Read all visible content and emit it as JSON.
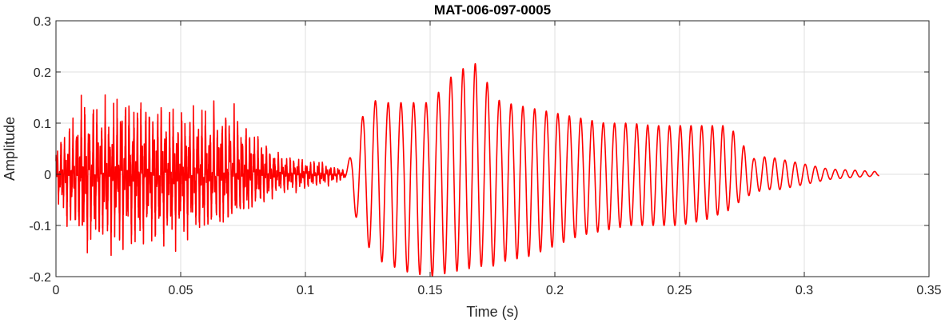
{
  "chart_data": {
    "type": "line",
    "title": "MAT-006-097-0005",
    "xlabel": "Time (s)",
    "ylabel": "Amplitude",
    "xlim": [
      0,
      0.35
    ],
    "ylim": [
      -0.2,
      0.3
    ],
    "grid": true,
    "xticks": [
      0,
      0.05,
      0.1,
      0.15,
      0.2,
      0.25,
      0.3,
      0.35
    ],
    "yticks": [
      -0.2,
      -0.1,
      0,
      0.1,
      0.2,
      0.3
    ],
    "xtick_labels": [
      "0",
      "0.05",
      "0.1",
      "0.15",
      "0.2",
      "0.25",
      "0.3",
      "0.35"
    ],
    "ytick_labels": [
      "-0.2",
      "-0.1",
      "0",
      "0.1",
      "0.2",
      "0.3"
    ],
    "series": [
      {
        "color": "#ff0000",
        "envelope": {
          "t": [
            0,
            0.005,
            0.012,
            0.02,
            0.03,
            0.04,
            0.05,
            0.06,
            0.07,
            0.08,
            0.09,
            0.1,
            0.11,
            0.116,
            0.12,
            0.125,
            0.13,
            0.14,
            0.15,
            0.16,
            0.17,
            0.175,
            0.18,
            0.19,
            0.2,
            0.21,
            0.22,
            0.23,
            0.24,
            0.25,
            0.26,
            0.27,
            0.275,
            0.28,
            0.285,
            0.29,
            0.3,
            0.31,
            0.32,
            0.33
          ],
          "pos": [
            0.06,
            0.1,
            0.16,
            0.13,
            0.16,
            0.13,
            0.13,
            0.13,
            0.14,
            0.08,
            0.04,
            0.03,
            0.02,
            0.01,
            0.06,
            0.15,
            0.14,
            0.14,
            0.14,
            0.2,
            0.22,
            0.15,
            0.14,
            0.13,
            0.12,
            0.11,
            0.1,
            0.1,
            0.095,
            0.095,
            0.095,
            0.095,
            0.06,
            0.03,
            0.035,
            0.03,
            0.02,
            0.01,
            0.008,
            0.005
          ],
          "neg": [
            -0.06,
            -0.1,
            -0.15,
            -0.14,
            -0.15,
            -0.13,
            -0.13,
            -0.12,
            -0.1,
            -0.07,
            -0.04,
            -0.03,
            -0.02,
            -0.01,
            -0.08,
            -0.14,
            -0.17,
            -0.19,
            -0.2,
            -0.19,
            -0.18,
            -0.18,
            -0.17,
            -0.16,
            -0.14,
            -0.12,
            -0.11,
            -0.1,
            -0.1,
            -0.1,
            -0.09,
            -0.07,
            -0.05,
            -0.035,
            -0.03,
            -0.03,
            -0.02,
            -0.01,
            -0.006,
            -0.003
          ]
        },
        "carrier_hz_segments": [
          {
            "t0": 0,
            "t1": 0.116,
            "hz": 620,
            "noise": true
          },
          {
            "t0": 0.116,
            "t1": 0.33,
            "hz": 190,
            "noise": false
          }
        ]
      }
    ]
  }
}
